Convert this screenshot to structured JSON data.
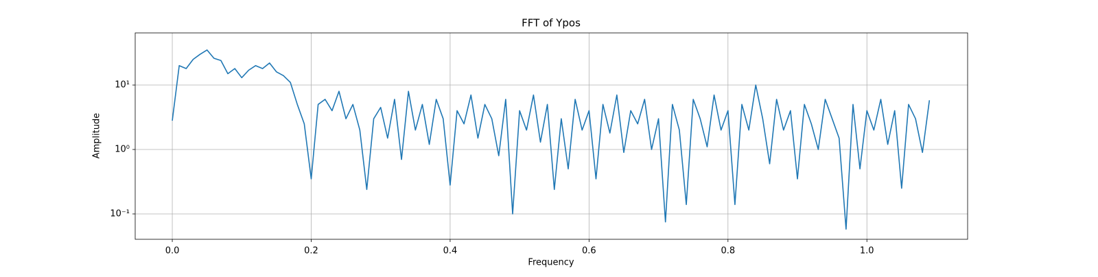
{
  "chart_data": {
    "type": "line",
    "title": "FFT of Ypos",
    "x_label": "Frequency",
    "y_label": "Amplitude",
    "y_scale": "log",
    "grid": true,
    "color": "#1f77b4",
    "xlim": [
      -0.0534,
      1.145
    ],
    "ylim": [
      0.0404,
      64.4
    ],
    "xticks": [
      {
        "value": 0,
        "label": "0.0"
      },
      {
        "value": 0.2,
        "label": "0.2"
      },
      {
        "value": 0.4,
        "label": "0.4"
      },
      {
        "value": 0.6,
        "label": "0.6"
      },
      {
        "value": 0.8,
        "label": "0.8"
      },
      {
        "value": 1,
        "label": "1.0"
      }
    ],
    "yticks": [
      {
        "value": 0.1,
        "label": "10⁻¹"
      },
      {
        "value": 1,
        "label": "10⁰"
      },
      {
        "value": 10,
        "label": "10¹"
      }
    ],
    "x": [
      0.0,
      0.01,
      0.02,
      0.03,
      0.04,
      0.05,
      0.06,
      0.07,
      0.08,
      0.09,
      0.1,
      0.11,
      0.12,
      0.13,
      0.14,
      0.15,
      0.16,
      0.17,
      0.18,
      0.19,
      0.2,
      0.21,
      0.22,
      0.23,
      0.24,
      0.25,
      0.26,
      0.27,
      0.28,
      0.29,
      0.3,
      0.31,
      0.32,
      0.33,
      0.34,
      0.35,
      0.36,
      0.37,
      0.38,
      0.39,
      0.4,
      0.41,
      0.42,
      0.43,
      0.44,
      0.45,
      0.46,
      0.47,
      0.48,
      0.49,
      0.5,
      0.51,
      0.52,
      0.53,
      0.54,
      0.55,
      0.56,
      0.57,
      0.58,
      0.59,
      0.6,
      0.61,
      0.62,
      0.63,
      0.64,
      0.65,
      0.66,
      0.67,
      0.68,
      0.69,
      0.7,
      0.71,
      0.72,
      0.73,
      0.74,
      0.75,
      0.76,
      0.77,
      0.78,
      0.79,
      0.8,
      0.81,
      0.82,
      0.83,
      0.84,
      0.85,
      0.86,
      0.87,
      0.88,
      0.89,
      0.9,
      0.91,
      0.92,
      0.93,
      0.94,
      0.95,
      0.96,
      0.97,
      0.98,
      0.99,
      1.0,
      1.01,
      1.02,
      1.03,
      1.04,
      1.05,
      1.06,
      1.07,
      1.08,
      1.09
    ],
    "values": [
      2.8,
      20,
      18,
      25,
      30,
      35,
      26,
      24,
      15,
      18,
      13,
      17,
      20,
      18,
      22,
      16,
      14,
      11,
      5,
      2.5,
      0.35,
      5,
      6,
      4,
      8,
      3,
      5,
      2,
      0.24,
      3,
      4.5,
      1.5,
      6,
      0.7,
      8,
      2,
      5,
      1.2,
      6,
      3,
      0.28,
      4,
      2.5,
      7,
      1.5,
      5,
      3,
      0.8,
      6,
      0.1,
      4,
      2,
      7,
      1.3,
      5,
      0.24,
      3,
      0.5,
      6,
      2,
      4,
      0.35,
      5,
      1.8,
      7,
      0.9,
      4,
      2.5,
      6,
      1,
      3,
      0.075,
      5,
      2,
      0.14,
      6,
      3,
      1.1,
      7,
      2,
      4,
      0.14,
      5,
      2,
      10,
      3,
      0.6,
      6,
      2,
      4,
      0.35,
      5,
      2.5,
      1,
      6,
      3,
      1.5,
      0.058,
      5,
      0.5,
      4,
      2,
      6,
      1.2,
      4,
      0.25,
      5,
      3,
      0.9,
      5.8
    ]
  }
}
